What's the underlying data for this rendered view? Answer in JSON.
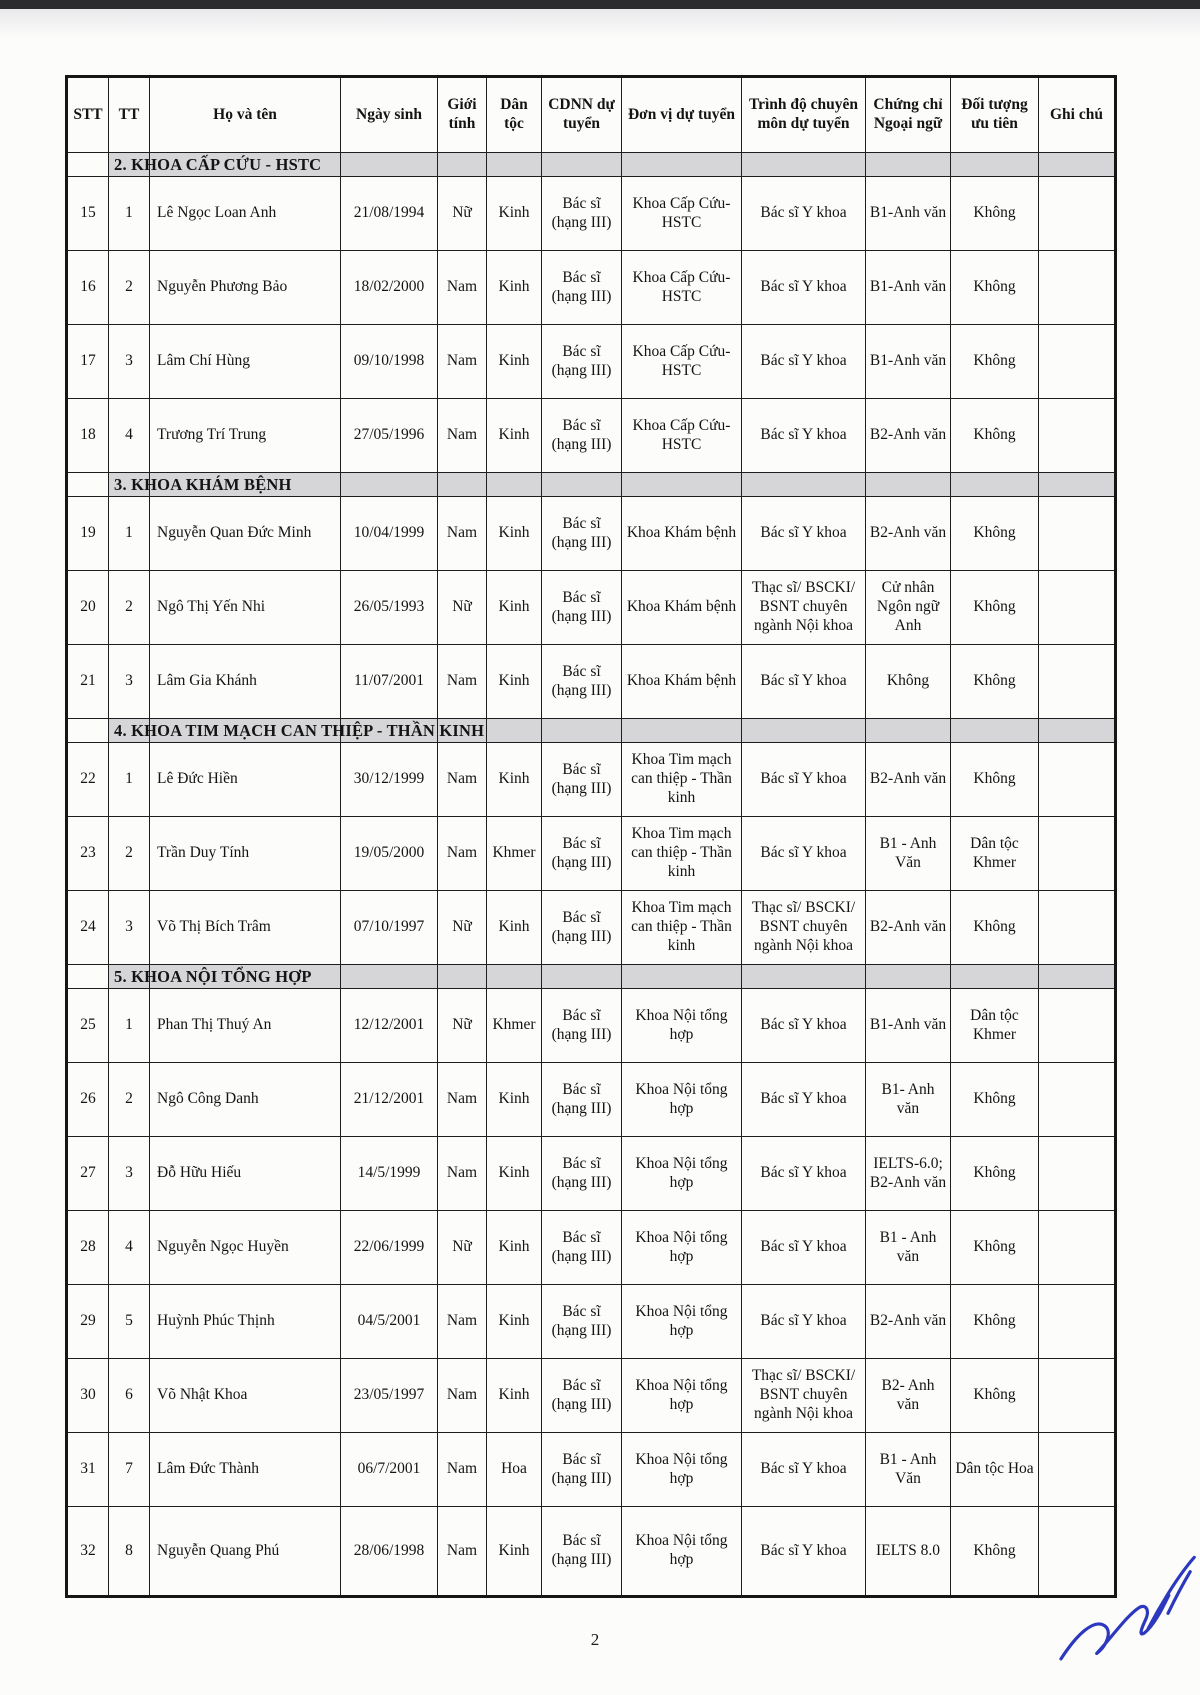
{
  "page": {
    "number": "2"
  },
  "colors": {
    "section_bg": "#d6d6d8",
    "border": "#1e1e1e",
    "signature_ink": "#2c38bd"
  },
  "table": {
    "headers": [
      "STT",
      "TT",
      "Họ và tên",
      "Ngày sinh",
      "Giới tính",
      "Dân tộc",
      "CDNN dự tuyển",
      "Đơn vị dự tuyển",
      "Trình độ chuyên môn dự tuyển",
      "Chứng chỉ Ngoại ngữ",
      "Đối tượng ưu tiên",
      "Ghi chú"
    ],
    "column_keys": [
      "stt",
      "tt",
      "ho-va-ten",
      "ngay-sinh",
      "gioi-tinh",
      "dan-toc",
      "cdnn-du-tuyen",
      "don-vi-du-tuyen",
      "trinh-do-chuyen-mon",
      "chung-chi-ngoai-ngu",
      "doi-tuong-uu-tien",
      "ghi-chu"
    ],
    "sections": [
      {
        "title": "2. KHOA CẤP CỨU - HSTC",
        "rows": [
          [
            "15",
            "1",
            "Lê Ngọc Loan Anh",
            "21/08/1994",
            "Nữ",
            "Kinh",
            "Bác sĩ (hạng III)",
            "Khoa Cấp Cứu-HSTC",
            "Bác sĩ Y khoa",
            "B1-Anh văn",
            "Không",
            ""
          ],
          [
            "16",
            "2",
            "Nguyễn Phương Bảo",
            "18/02/2000",
            "Nam",
            "Kinh",
            "Bác sĩ (hạng III)",
            "Khoa Cấp Cứu-HSTC",
            "Bác sĩ Y khoa",
            "B1-Anh văn",
            "Không",
            ""
          ],
          [
            "17",
            "3",
            "Lâm Chí Hùng",
            "09/10/1998",
            "Nam",
            "Kinh",
            "Bác sĩ (hạng III)",
            "Khoa Cấp Cứu-HSTC",
            "Bác sĩ Y khoa",
            "B1-Anh văn",
            "Không",
            ""
          ],
          [
            "18",
            "4",
            "Trương Trí Trung",
            "27/05/1996",
            "Nam",
            "Kinh",
            "Bác sĩ (hạng III)",
            "Khoa Cấp Cứu-HSTC",
            "Bác sĩ Y khoa",
            "B2-Anh văn",
            "Không",
            ""
          ]
        ]
      },
      {
        "title": "3. KHOA KHÁM BỆNH",
        "rows": [
          [
            "19",
            "1",
            "Nguyễn Quan Đức Minh",
            "10/04/1999",
            "Nam",
            "Kinh",
            "Bác sĩ (hạng III)",
            "Khoa Khám bệnh",
            "Bác sĩ Y khoa",
            "B2-Anh văn",
            "Không",
            ""
          ],
          [
            "20",
            "2",
            "Ngô Thị Yến Nhi",
            "26/05/1993",
            "Nữ",
            "Kinh",
            "Bác sĩ (hạng III)",
            "Khoa Khám bệnh",
            "Thạc sĩ/ BSCKI/ BSNT chuyên ngành Nội khoa",
            "Cử nhân Ngôn ngữ Anh",
            "Không",
            ""
          ],
          [
            "21",
            "3",
            "Lâm Gia Khánh",
            "11/07/2001",
            "Nam",
            "Kinh",
            "Bác sĩ (hạng III)",
            "Khoa Khám bệnh",
            "Bác sĩ Y khoa",
            "Không",
            "Không",
            ""
          ]
        ]
      },
      {
        "title": "4. KHOA TIM MẠCH CAN THIỆP - THẦN KINH",
        "rows": [
          [
            "22",
            "1",
            "Lê Đức Hiền",
            "30/12/1999",
            "Nam",
            "Kinh",
            "Bác sĩ (hạng III)",
            "Khoa Tim mạch can thiệp - Thần kinh",
            "Bác sĩ Y khoa",
            "B2-Anh văn",
            "Không",
            ""
          ],
          [
            "23",
            "2",
            "Trần Duy Tính",
            "19/05/2000",
            "Nam",
            "Khmer",
            "Bác sĩ (hạng III)",
            "Khoa Tim mạch can thiệp - Thần kinh",
            "Bác sĩ Y khoa",
            "B1 - Anh Văn",
            "Dân tộc Khmer",
            ""
          ],
          [
            "24",
            "3",
            "Võ Thị Bích Trâm",
            "07/10/1997",
            "Nữ",
            "Kinh",
            "Bác sĩ (hạng III)",
            "Khoa Tim mạch can thiệp - Thần kinh",
            "Thạc sĩ/ BSCKI/ BSNT chuyên ngành Nội khoa",
            "B2-Anh văn",
            "Không",
            ""
          ]
        ]
      },
      {
        "title": "5. KHOA NỘI TỔNG HỢP",
        "rows": [
          [
            "25",
            "1",
            "Phan Thị Thuý An",
            "12/12/2001",
            "Nữ",
            "Khmer",
            "Bác sĩ (hạng III)",
            "Khoa Nội tổng hợp",
            "Bác sĩ Y khoa",
            "B1-Anh văn",
            "Dân tộc Khmer",
            ""
          ],
          [
            "26",
            "2",
            "Ngô Công Danh",
            "21/12/2001",
            "Nam",
            "Kinh",
            "Bác sĩ (hạng III)",
            "Khoa Nội tổng hợp",
            "Bác sĩ Y khoa",
            "B1- Anh văn",
            "Không",
            ""
          ],
          [
            "27",
            "3",
            "Đỗ Hữu Hiếu",
            "14/5/1999",
            "Nam",
            "Kinh",
            "Bác sĩ (hạng III)",
            "Khoa Nội tổng hợp",
            "Bác sĩ Y khoa",
            "IELTS-6.0; B2-Anh văn",
            "Không",
            ""
          ],
          [
            "28",
            "4",
            "Nguyễn Ngọc Huyền",
            "22/06/1999",
            "Nữ",
            "Kinh",
            "Bác sĩ (hạng III)",
            "Khoa Nội tổng hợp",
            "Bác sĩ Y khoa",
            "B1 - Anh văn",
            "Không",
            ""
          ],
          [
            "29",
            "5",
            "Huỳnh Phúc Thịnh",
            "04/5/2001",
            "Nam",
            "Kinh",
            "Bác sĩ (hạng III)",
            "Khoa Nội tổng hợp",
            "Bác sĩ Y khoa",
            "B2-Anh văn",
            "Không",
            ""
          ],
          [
            "30",
            "6",
            "Võ Nhật Khoa",
            "23/05/1997",
            "Nam",
            "Kinh",
            "Bác sĩ (hạng III)",
            "Khoa Nội tổng hợp",
            "Thạc sĩ/ BSCKI/ BSNT chuyên ngành Nội khoa",
            "B2- Anh văn",
            "Không",
            ""
          ],
          [
            "31",
            "7",
            "Lâm Đức Thành",
            "06/7/2001",
            "Nam",
            "Hoa",
            "Bác sĩ (hạng III)",
            "Khoa Nội tổng hợp",
            "Bác sĩ Y khoa",
            "B1 - Anh Văn",
            "Dân tộc Hoa",
            ""
          ],
          [
            "32",
            "8",
            "Nguyễn Quang Phú",
            "28/06/1998",
            "Nam",
            "Kinh",
            "Bác sĩ (hạng III)",
            "Khoa Nội tổng hợp",
            "Bác sĩ Y khoa",
            "IELTS 8.0",
            "Không",
            ""
          ]
        ]
      }
    ]
  }
}
